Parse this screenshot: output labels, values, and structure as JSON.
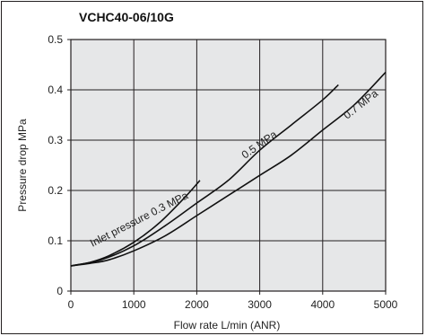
{
  "chart_data": {
    "type": "line",
    "title": "VCHC40-06/10G",
    "xlabel": "Flow rate L/min (ANR)",
    "ylabel": "Pressure drop MPa",
    "xlim": [
      0,
      5000
    ],
    "ylim": [
      0,
      0.5
    ],
    "x_ticks": [
      "0",
      "1000",
      "2000",
      "3000",
      "4000",
      "5000"
    ],
    "y_ticks": [
      "0",
      "0.1",
      "0.2",
      "0.3",
      "0.4",
      "0.5"
    ],
    "grid": true,
    "colors": {
      "plot_bg": "#e6e7e8",
      "grid": "#231f20",
      "line": "#111111"
    },
    "series": [
      {
        "name": "Inlet pressure 0.3 MPa",
        "x": [
          0,
          300,
          600,
          1000,
          1400,
          1800,
          2050
        ],
        "y": [
          0.05,
          0.057,
          0.07,
          0.097,
          0.135,
          0.185,
          0.22
        ]
      },
      {
        "name": "0.5 MPa",
        "x": [
          0,
          500,
          1000,
          1500,
          2000,
          2500,
          3000,
          3500,
          4000,
          4250
        ],
        "y": [
          0.05,
          0.063,
          0.09,
          0.13,
          0.175,
          0.22,
          0.28,
          0.33,
          0.38,
          0.41
        ]
      },
      {
        "name": "0.7 MPa",
        "x": [
          0,
          300,
          600,
          1000,
          1500,
          2000,
          2500,
          3000,
          3500,
          4000,
          4500,
          5000
        ],
        "y": [
          0.05,
          0.055,
          0.062,
          0.08,
          0.11,
          0.15,
          0.19,
          0.23,
          0.27,
          0.32,
          0.37,
          0.435
        ]
      }
    ]
  }
}
